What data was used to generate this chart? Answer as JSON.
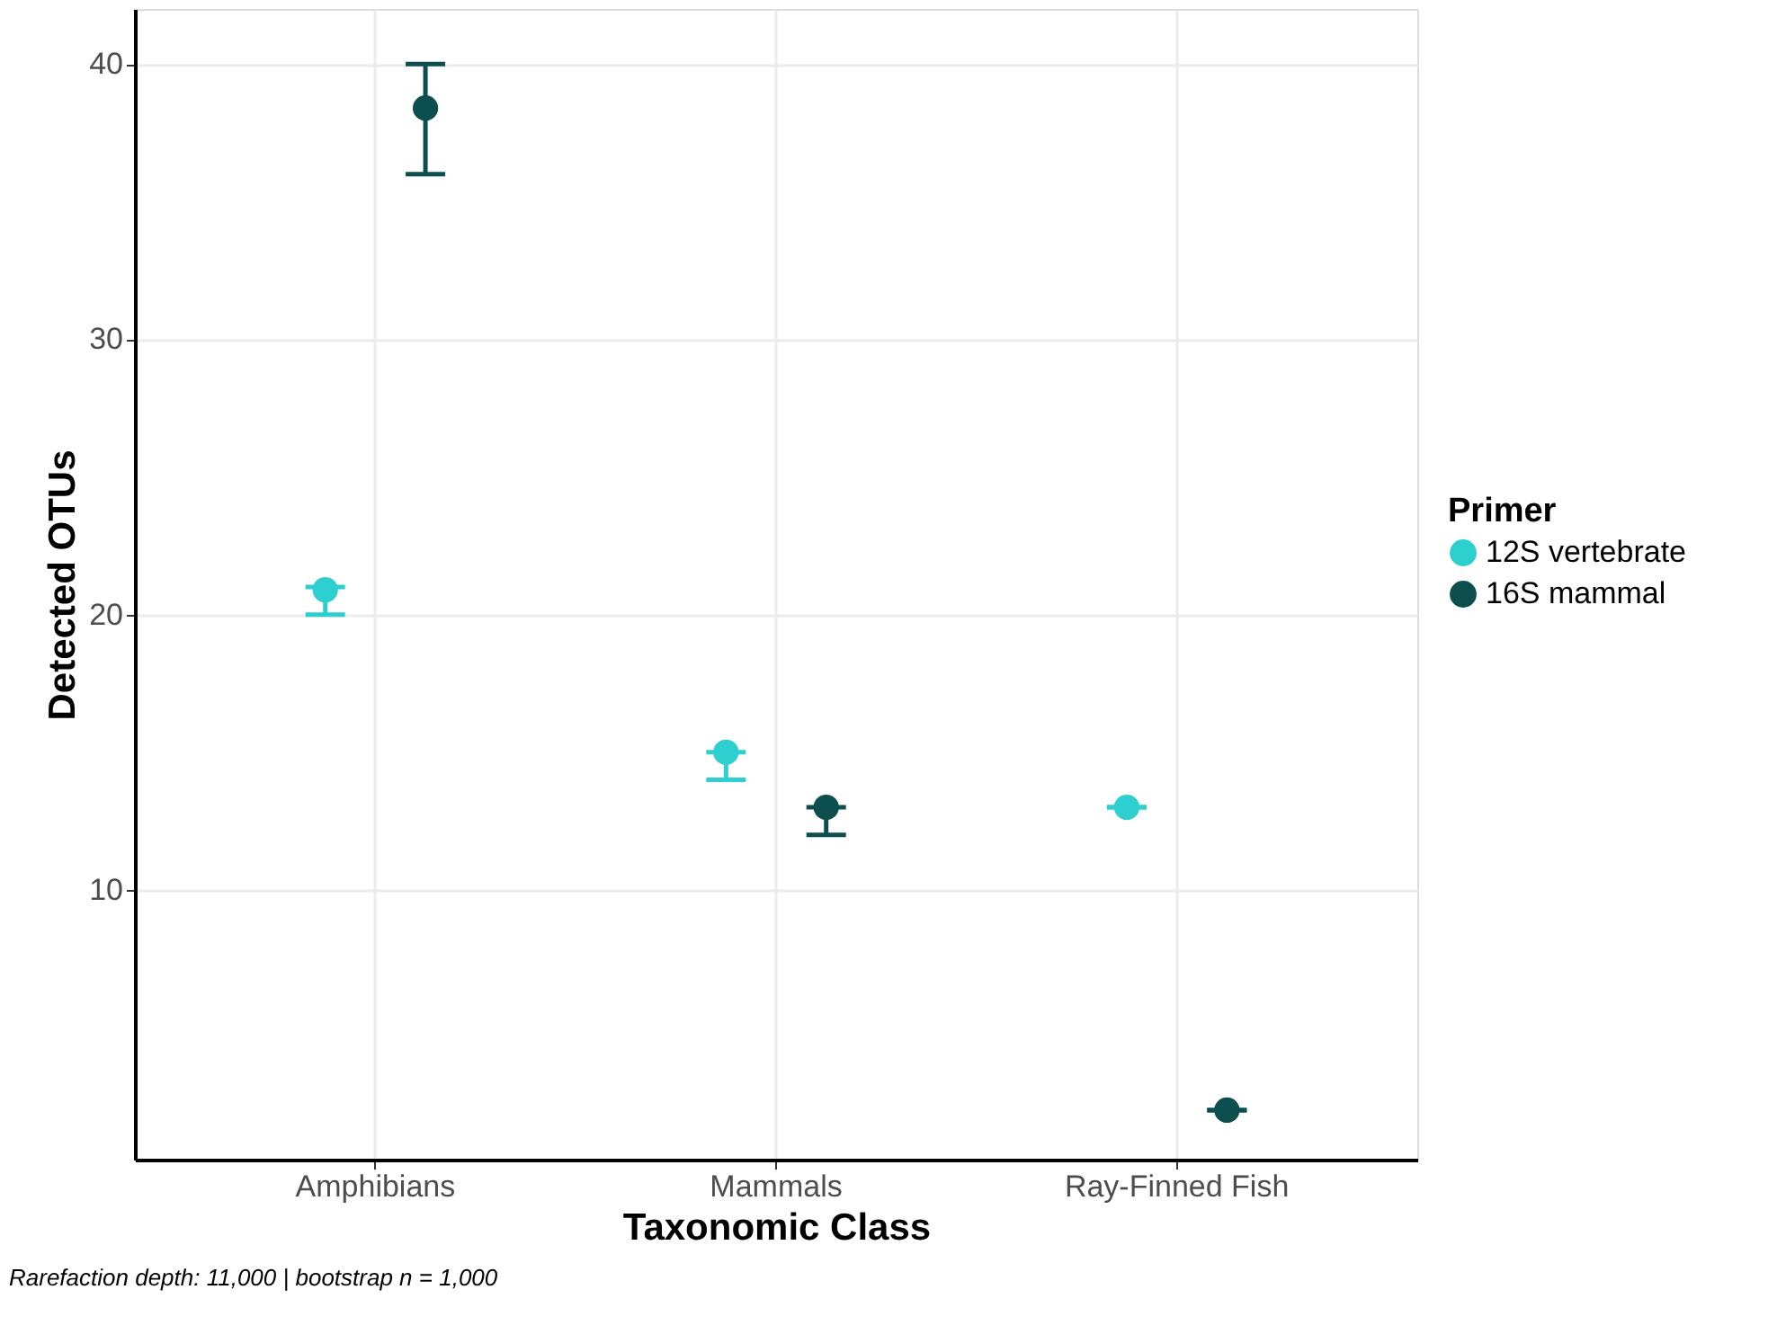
{
  "chart_data": {
    "type": "scatter",
    "xlabel": "Taxonomic Class",
    "ylabel": "Detected OTUs",
    "legend_title": "Primer",
    "categories": [
      "Amphibians",
      "Mammals",
      "Ray-Finned Fish"
    ],
    "series": [
      {
        "name": "12S vertebrate",
        "color": "#2dcfcf",
        "values": [
          20.9,
          15.0,
          13.0
        ],
        "errors": [
          [
            20,
            21
          ],
          [
            14,
            15
          ],
          [
            13,
            13
          ]
        ]
      },
      {
        "name": "16S mammal",
        "color": "#0d4f4f",
        "values": [
          38.4,
          13.0,
          2.0
        ],
        "errors": [
          [
            36,
            40
          ],
          [
            12,
            13
          ],
          [
            2,
            2
          ]
        ]
      }
    ],
    "ylim": [
      0.2,
      42
    ],
    "yticks": [
      10,
      20,
      30,
      40
    ],
    "grid": true,
    "legend": "right",
    "marker": "circle",
    "annotations": [
      "Rarefaction depth: 11,000 | bootstrap n = 1,000"
    ]
  }
}
